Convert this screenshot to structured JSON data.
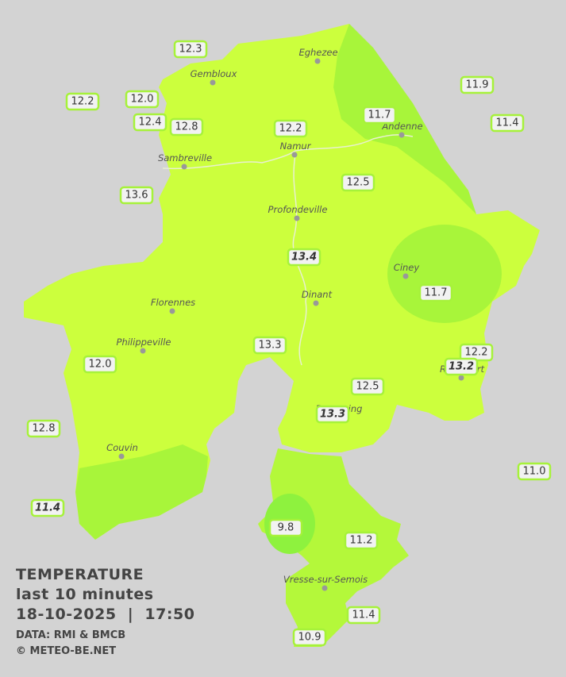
{
  "title": "TEMPERATURE",
  "subtitle": "last 10 minutes",
  "timestamp": "18-10-2025  |  17:50",
  "source": "DATA: RMI & BMCB",
  "credit": "© METEO-BE.NET",
  "towns": [
    "Eghezee",
    "Gembloux",
    "Andenne",
    "Namur",
    "Sambreville",
    "Profondeville",
    "Ciney",
    "Dinant",
    "Florennes",
    "Philippeville",
    "Rochefort",
    "Beauraing",
    "Couvin",
    "Vresse-sur-Semois"
  ],
  "stations": [
    "12.3",
    "12.2",
    "12.0",
    "12.4",
    "12.8",
    "12.2",
    "11.7",
    "11.9",
    "11.4",
    "13.6",
    "12.5",
    "13.4",
    "11.7",
    "13.3",
    "12.0",
    "12.2",
    "13.2",
    "12.5",
    "13.3",
    "12.8",
    "11.0",
    "11.4",
    "9.8",
    "11.2",
    "11.4",
    "10.9"
  ]
}
